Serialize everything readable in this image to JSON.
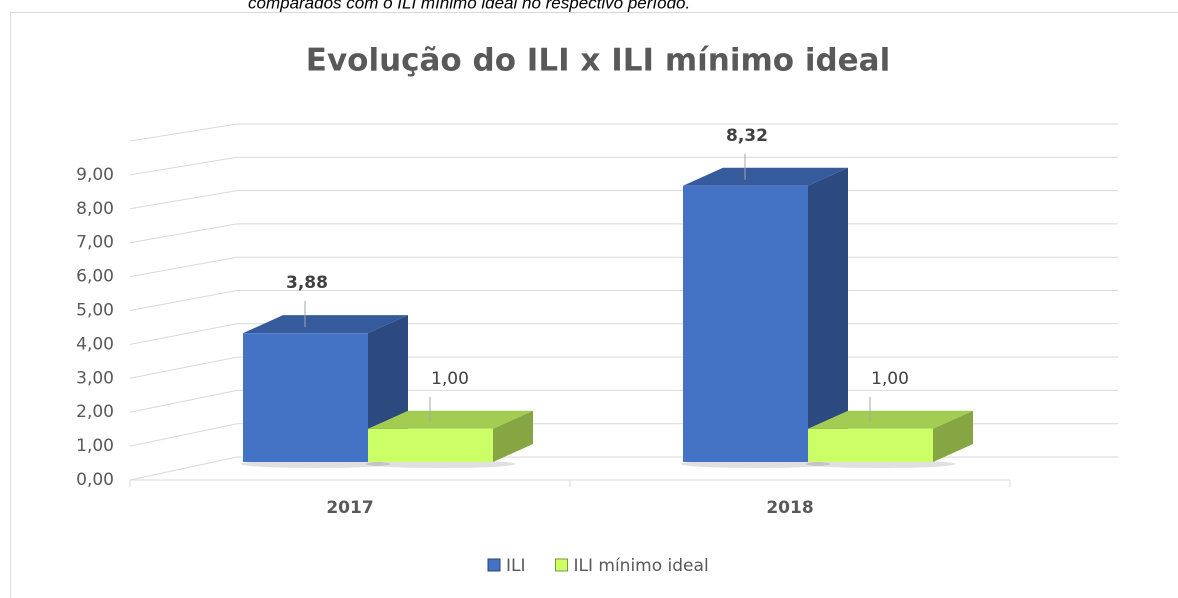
{
  "caption": "comparados com o ILI mínimo ideal no respectivo período.",
  "chart_data": {
    "type": "bar3d",
    "title": "Evolução do ILI x ILI mínimo ideal",
    "categories": [
      "2017",
      "2018"
    ],
    "series": [
      {
        "name": "ILI",
        "color": "#4472c4",
        "values": [
          3.88,
          8.32
        ],
        "value_labels": [
          "3,88",
          "8,32"
        ]
      },
      {
        "name": "ILI mínimo ideal",
        "color": "#ccff66",
        "values": [
          1.0,
          1.0
        ],
        "value_labels": [
          "1,00",
          "1,00"
        ]
      }
    ],
    "ylim": [
      0,
      10
    ],
    "yticks": [
      {
        "value": 0,
        "label": "0,00"
      },
      {
        "value": 1,
        "label": "1,00"
      },
      {
        "value": 2,
        "label": "2,00"
      },
      {
        "value": 3,
        "label": "3,00"
      },
      {
        "value": 4,
        "label": "4,00"
      },
      {
        "value": 5,
        "label": "5,00"
      },
      {
        "value": 6,
        "label": "6,00"
      },
      {
        "value": 7,
        "label": "7,00"
      },
      {
        "value": 8,
        "label": "8,00"
      },
      {
        "value": 9,
        "label": "9,00"
      }
    ],
    "grid": true,
    "legend": "bottom"
  }
}
